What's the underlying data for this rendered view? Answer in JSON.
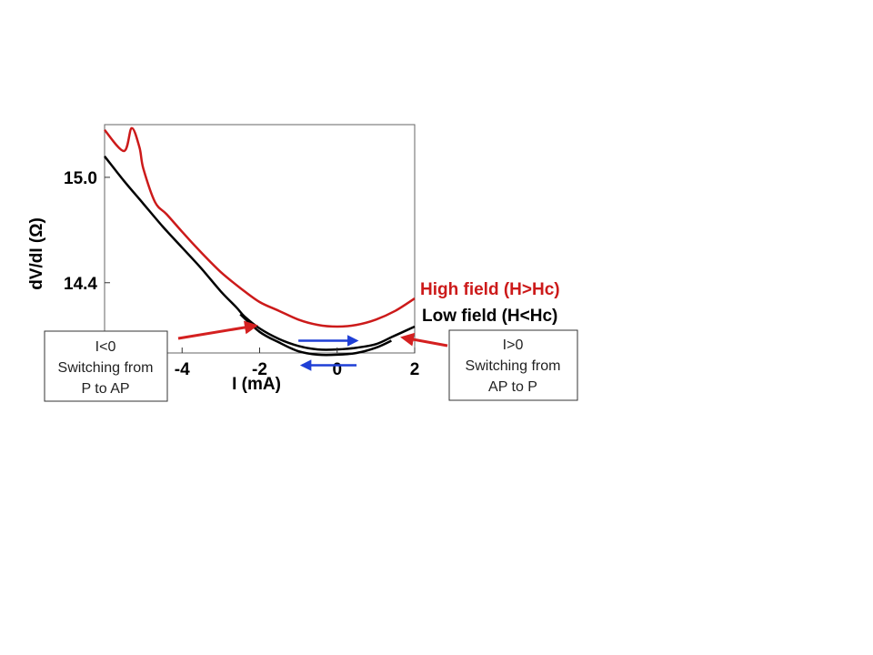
{
  "chart_data": {
    "type": "line",
    "xlabel": "I (mA)",
    "ylabel": "dV/dI (Ω)",
    "xlim": [
      -6,
      2
    ],
    "ylim": [
      14.0,
      15.3
    ],
    "x_ticks": [
      -4,
      -2,
      0,
      2
    ],
    "x_tick_labels": [
      "-4",
      "-2",
      "0",
      "2"
    ],
    "y_ticks": [
      14.4,
      15.0
    ],
    "y_tick_labels": [
      "14.4",
      "15.0"
    ],
    "grid": false,
    "series": [
      {
        "name": "High field (H>Hc)",
        "color": "#cc1a1a",
        "x": [
          -6.0,
          -5.5,
          -5.3,
          -5.1,
          -5.0,
          -4.7,
          -4.4,
          -4.0,
          -3.5,
          -3.0,
          -2.5,
          -2.0,
          -1.5,
          -1.0,
          -0.5,
          0.0,
          0.5,
          1.0,
          1.5,
          2.0
        ],
        "y": [
          15.27,
          15.15,
          15.28,
          15.17,
          15.05,
          14.86,
          14.79,
          14.69,
          14.57,
          14.46,
          14.37,
          14.29,
          14.24,
          14.19,
          14.16,
          14.15,
          14.16,
          14.19,
          14.24,
          14.31
        ]
      },
      {
        "name": "Low field (H<Hc)",
        "color": "#000000",
        "x": [
          -6.0,
          -5.5,
          -5.0,
          -4.5,
          -4.0,
          -3.5,
          -3.0,
          -2.6,
          -2.4,
          -2.0,
          -1.5,
          -1.0,
          -0.5,
          0.0,
          0.5,
          1.0,
          1.4,
          1.6,
          2.0
        ],
        "y": [
          15.12,
          14.98,
          14.85,
          14.72,
          14.6,
          14.48,
          14.35,
          14.26,
          14.21,
          14.14,
          14.08,
          14.04,
          14.02,
          14.02,
          14.03,
          14.05,
          14.09,
          14.11,
          14.15
        ]
      },
      {
        "name": "",
        "color": "#000000",
        "x": [
          -2.5,
          -2.0,
          -1.5,
          -1.0,
          -0.5,
          0.0,
          0.5,
          1.0,
          1.4
        ],
        "y": [
          14.22,
          14.12,
          14.06,
          14.01,
          13.99,
          13.99,
          14.0,
          14.03,
          14.07
        ]
      }
    ],
    "legend": {
      "placement": "right",
      "entries": [
        "High field (H>Hc)",
        "Low field (H<Hc)"
      ]
    },
    "annotations": {
      "left_box": {
        "lines": [
          "I<0",
          "Switching from",
          "P to AP"
        ]
      },
      "right_box": {
        "lines": [
          "I>0",
          "Switching from",
          "AP to P"
        ]
      },
      "sweep_arrows": {
        "color": "#1f3fd6",
        "forward": {
          "from": -1.0,
          "to": 0.5,
          "y": 14.07
        },
        "backward": {
          "from": 0.5,
          "to": -0.9,
          "y": 13.93
        }
      },
      "pointer_color": "#d42020"
    }
  }
}
